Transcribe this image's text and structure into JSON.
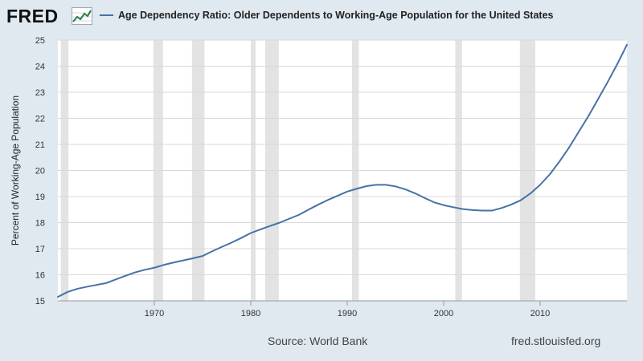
{
  "header": {
    "logo_text": "FRED",
    "series_title": "Age Dependency Ratio: Older Dependents to Working-Age Population for the United States"
  },
  "footer": {
    "source": "Source: World Bank",
    "url": "fred.stlouisfed.org"
  },
  "colors": {
    "background": "#e1e9f0",
    "plot_background": "#ffffff",
    "series_line": "#4572a7",
    "recession_band": "#e3e3e3",
    "gridline": "#d9d9d9"
  },
  "chart_data": {
    "type": "line",
    "title": "Age Dependency Ratio: Older Dependents to Working-Age Population for the United States",
    "xlabel": "",
    "ylabel": "Percent of Working-Age Population",
    "xlim": [
      1960,
      2019
    ],
    "ylim": [
      15,
      25
    ],
    "x_ticks": [
      1970,
      1980,
      1990,
      2000,
      2010
    ],
    "y_ticks": [
      15,
      16,
      17,
      18,
      19,
      20,
      21,
      22,
      23,
      24,
      25
    ],
    "grid": "horizontal",
    "legend": "top",
    "recessions": [
      [
        1960.3,
        1961.1
      ],
      [
        1969.9,
        1970.9
      ],
      [
        1973.9,
        1975.2
      ],
      [
        1980.0,
        1980.5
      ],
      [
        1981.5,
        1982.9
      ],
      [
        1990.5,
        1991.2
      ],
      [
        2001.2,
        2001.9
      ],
      [
        2007.9,
        2009.5
      ]
    ],
    "series": [
      {
        "name": "Age Dependency Ratio: Older Dependents to Working-Age Population for the United States",
        "x": [
          1960,
          1961,
          1962,
          1963,
          1964,
          1965,
          1966,
          1967,
          1968,
          1969,
          1970,
          1971,
          1972,
          1973,
          1974,
          1975,
          1976,
          1977,
          1978,
          1979,
          1980,
          1981,
          1982,
          1983,
          1984,
          1985,
          1986,
          1987,
          1988,
          1989,
          1990,
          1991,
          1992,
          1993,
          1994,
          1995,
          1996,
          1997,
          1998,
          1999,
          2000,
          2001,
          2002,
          2003,
          2004,
          2005,
          2006,
          2007,
          2008,
          2009,
          2010,
          2011,
          2012,
          2013,
          2014,
          2015,
          2016,
          2017,
          2018,
          2019
        ],
        "values": [
          15.15,
          15.34,
          15.46,
          15.54,
          15.61,
          15.68,
          15.82,
          15.96,
          16.09,
          16.19,
          16.27,
          16.38,
          16.47,
          16.55,
          16.63,
          16.72,
          16.9,
          17.07,
          17.23,
          17.41,
          17.6,
          17.74,
          17.87,
          18.0,
          18.15,
          18.3,
          18.5,
          18.69,
          18.87,
          19.03,
          19.19,
          19.3,
          19.4,
          19.45,
          19.45,
          19.39,
          19.28,
          19.13,
          18.95,
          18.78,
          18.67,
          18.59,
          18.52,
          18.48,
          18.46,
          18.46,
          18.56,
          18.69,
          18.86,
          19.12,
          19.45,
          19.85,
          20.34,
          20.88,
          21.48,
          22.08,
          22.73,
          23.39,
          24.08,
          24.82
        ]
      }
    ]
  }
}
